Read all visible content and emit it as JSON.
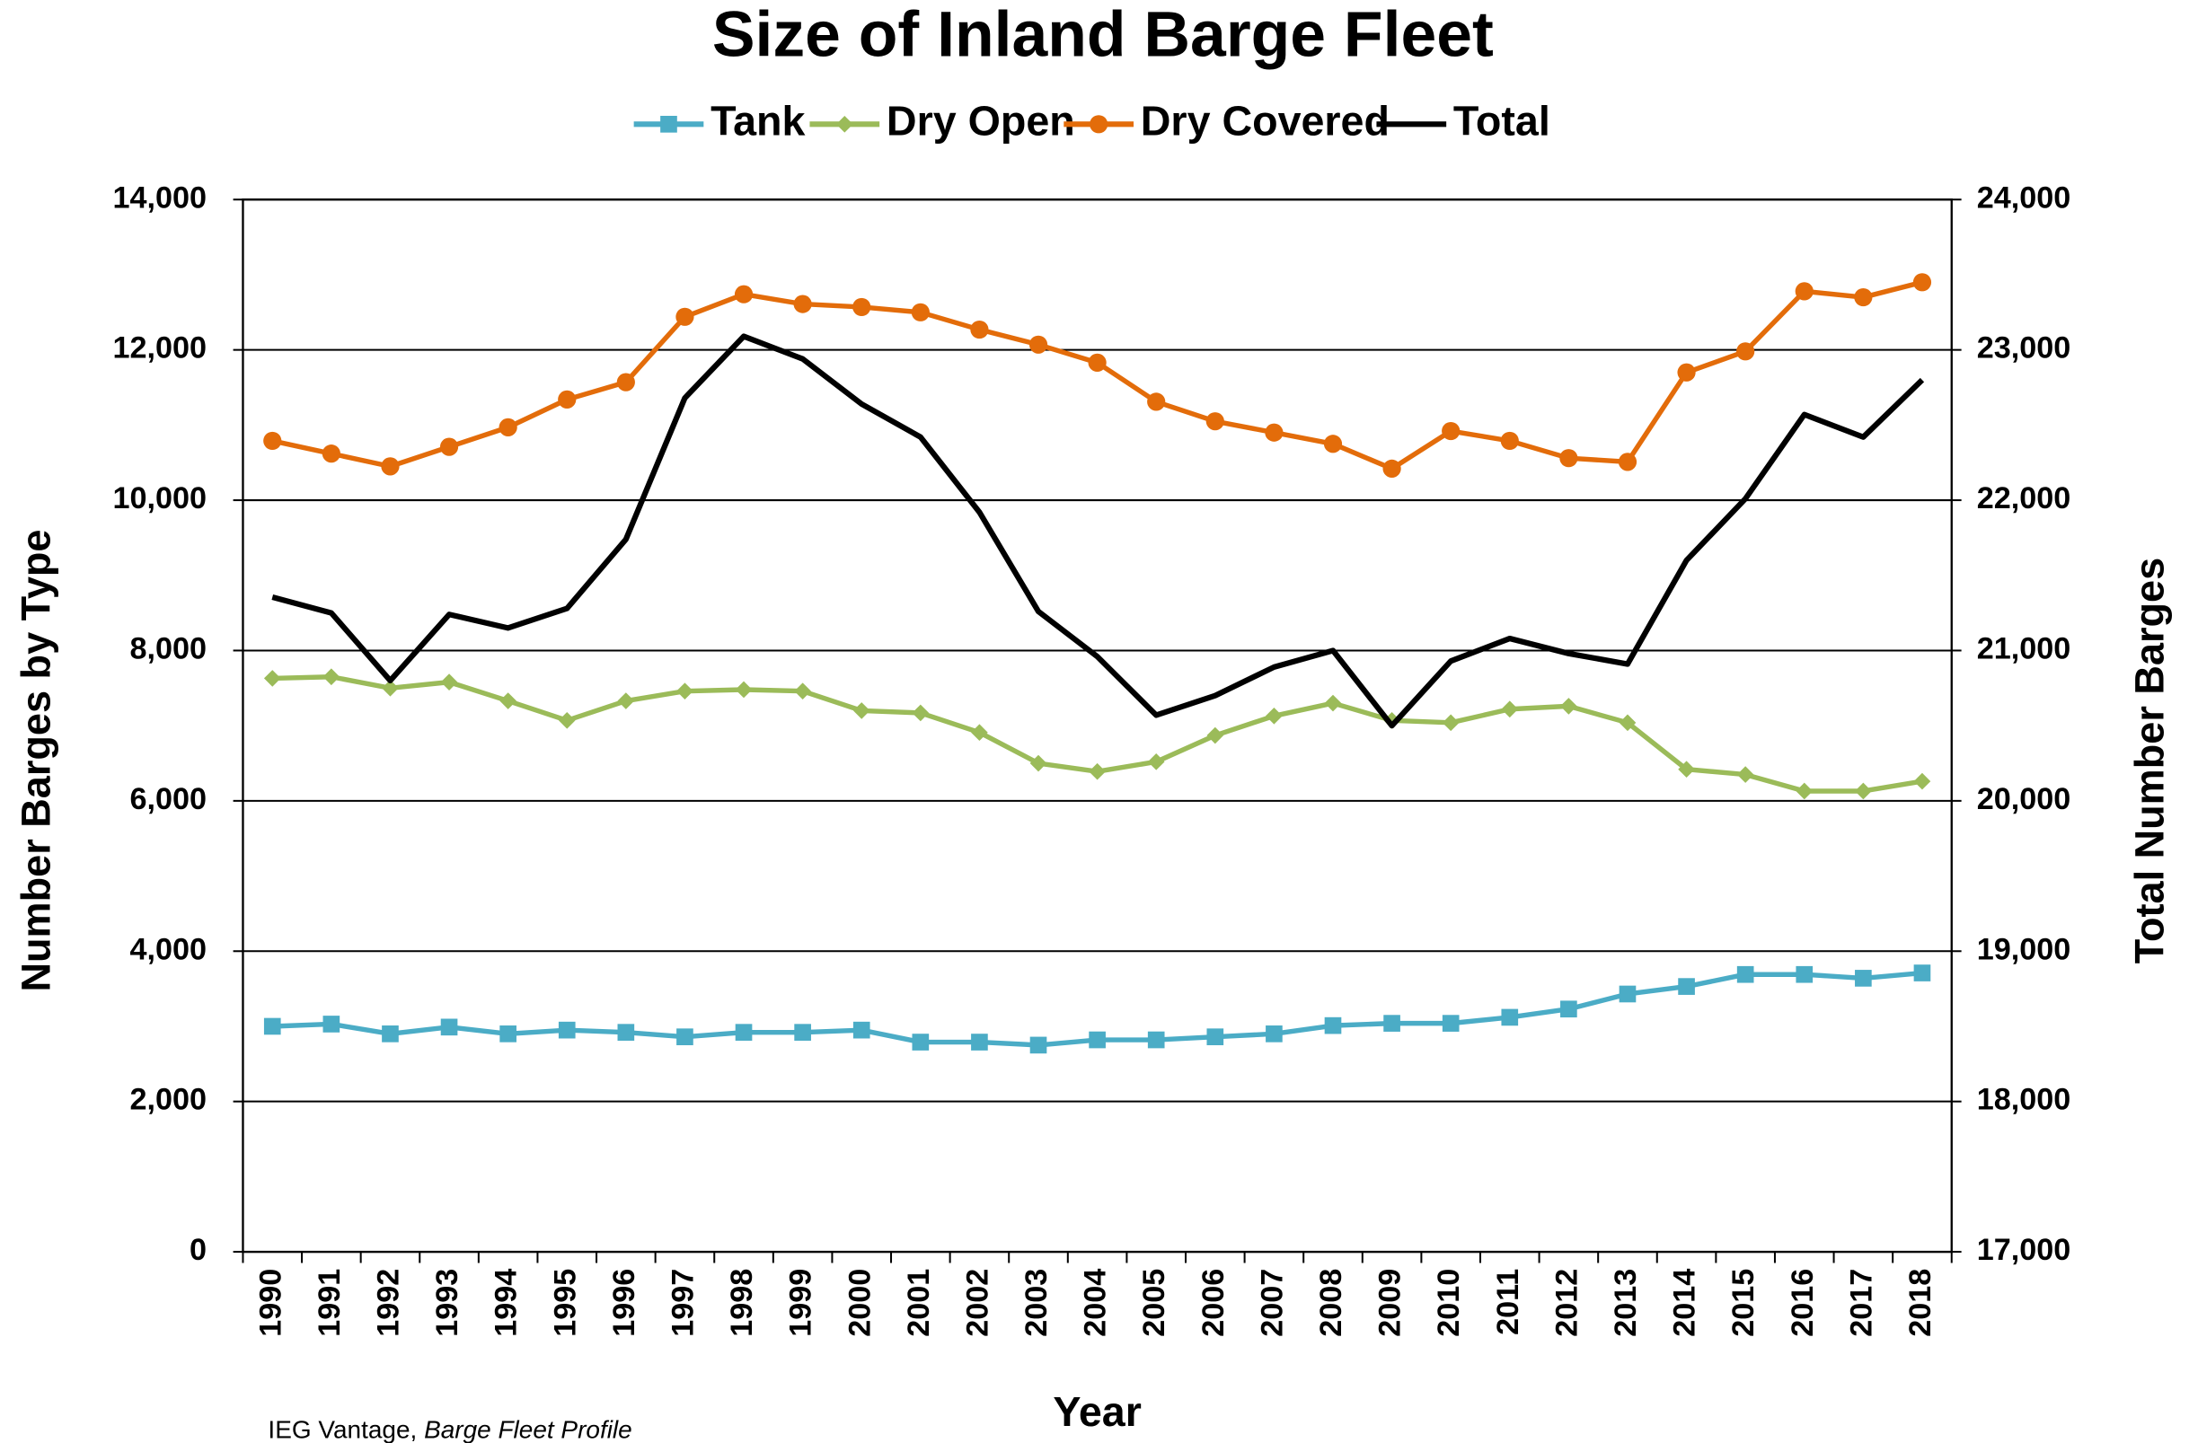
{
  "chart_data": {
    "type": "line",
    "title": "Size of Inland Barge Fleet",
    "x_label": "Year",
    "y_label": "Number Barges by Type",
    "y2_label": "Total Number Barges",
    "source_prefix": "IEG Vantage,",
    "source_title": "Barge Fleet Profile",
    "categories": [
      "1990",
      "1991",
      "1992",
      "1993",
      "1994",
      "1995",
      "1996",
      "1997",
      "1998",
      "1999",
      "2000",
      "2001",
      "2002",
      "2003",
      "2004",
      "2005",
      "2006",
      "2007",
      "2008",
      "2009",
      "2010",
      "2011",
      "2012",
      "2013",
      "2014",
      "2015",
      "2016",
      "2017",
      "2018"
    ],
    "series": [
      {
        "name": "Tank",
        "color": "#4bacc6",
        "marker": "square",
        "values": [
          3000,
          3030,
          2900,
          2990,
          2900,
          2950,
          2920,
          2860,
          2920,
          2920,
          2950,
          2790,
          2790,
          2750,
          2820,
          2820,
          2860,
          2900,
          3010,
          3040,
          3040,
          3120,
          3230,
          3430,
          3530,
          3690,
          3690,
          3640,
          3710
        ]
      },
      {
        "name": "Dry Open",
        "color": "#9bbb59",
        "marker": "diamond",
        "values": [
          7630,
          7650,
          7500,
          7580,
          7330,
          7070,
          7330,
          7460,
          7480,
          7460,
          7200,
          7170,
          6910,
          6500,
          6390,
          6520,
          6870,
          7130,
          7300,
          7070,
          7040,
          7220,
          7260,
          7040,
          6420,
          6350,
          6130,
          6130,
          6260
        ]
      },
      {
        "name": "Dry Covered",
        "color": "#e36c0a",
        "marker": "circle",
        "values": [
          10790,
          10620,
          10450,
          10710,
          10970,
          11340,
          11570,
          12440,
          12740,
          12610,
          12570,
          12500,
          12270,
          12070,
          11830,
          11310,
          11050,
          10900,
          10750,
          10420,
          10920,
          10790,
          10560,
          10510,
          11700,
          11980,
          12780,
          12700,
          12900
        ]
      },
      {
        "name": "Total",
        "color": "#000000",
        "marker": "none",
        "axis": "y2",
        "values": [
          21355,
          21250,
          20800,
          21240,
          21150,
          21280,
          21740,
          22680,
          23090,
          22940,
          22640,
          22420,
          21920,
          21260,
          20960,
          20570,
          20700,
          20890,
          21000,
          20500,
          20930,
          21080,
          20980,
          20910,
          21600,
          22010,
          22570,
          22420,
          22800
        ]
      }
    ],
    "ylim": [
      0,
      14000
    ],
    "yticks": [
      0,
      {
        "value": 2000,
        "label": "2,000"
      },
      {
        "value": 4000,
        "label": "4,000"
      },
      {
        "value": 6000,
        "label": "6,000"
      },
      {
        "value": 8000,
        "label": "8,000"
      },
      {
        "value": 10000,
        "label": "10,000"
      },
      {
        "value": 12000,
        "label": "12,000"
      },
      {
        "value": 14000,
        "label": "14,000"
      }
    ],
    "y2lim": [
      17000,
      24000
    ],
    "y2ticks": [
      {
        "value": 17000,
        "label": "17,000"
      },
      {
        "value": 18000,
        "label": "18,000"
      },
      {
        "value": 19000,
        "label": "19,000"
      },
      {
        "value": 20000,
        "label": "20,000"
      },
      {
        "value": 21000,
        "label": "21,000"
      },
      {
        "value": 22000,
        "label": "22,000"
      },
      {
        "value": 23000,
        "label": "23,000"
      },
      {
        "value": 24000,
        "label": "24,000"
      }
    ],
    "grid": true
  }
}
